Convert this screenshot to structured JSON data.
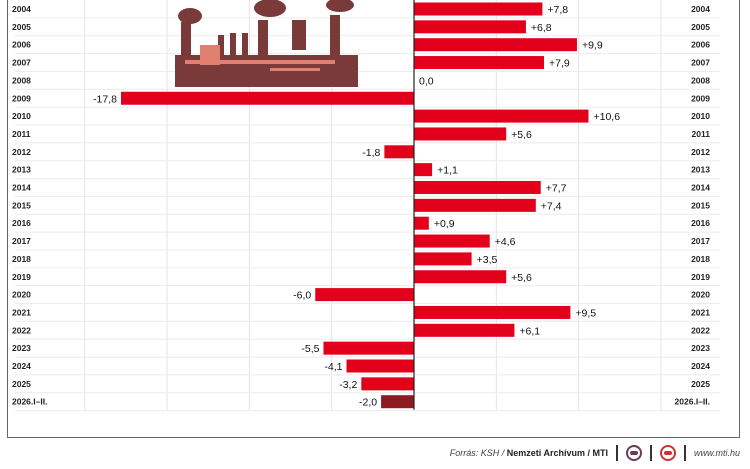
{
  "chart_data": {
    "type": "bar",
    "orientation": "horizontal",
    "categories": [
      "2004",
      "2005",
      "2006",
      "2007",
      "2008",
      "2009",
      "2010",
      "2011",
      "2012",
      "2013",
      "2014",
      "2015",
      "2016",
      "2017",
      "2018",
      "2019",
      "2020",
      "2021",
      "2022",
      "2023",
      "2024",
      "2025",
      "2026.I–II."
    ],
    "values": [
      7.8,
      6.8,
      9.9,
      7.9,
      0.0,
      -17.8,
      10.6,
      5.6,
      -1.8,
      1.1,
      7.7,
      7.4,
      0.9,
      4.6,
      3.5,
      5.6,
      -6.0,
      9.5,
      6.1,
      -5.5,
      -4.1,
      -3.2,
      -2.0
    ],
    "value_labels": [
      "+7,8",
      "+6,8",
      "+9,9",
      "+7,9",
      "0,0",
      "-17,8",
      "+10,6",
      "+5,6",
      "-1,8",
      "+1,1",
      "+7,7",
      "+7,4",
      "+0,9",
      "+4,6",
      "+3,5",
      "+5,6",
      "-6,0",
      "+9,5",
      "+6,1",
      "-5,5",
      "-4,1",
      "-3,2",
      "-2,0"
    ],
    "xlim": [
      -20,
      15
    ],
    "grid": true,
    "colors": {
      "bar": "#e3001b",
      "last_bar": "#8e1a22",
      "illustration": "#7a3a3a",
      "illustration_light": "#e08070"
    }
  },
  "footer": {
    "source_prefix": "Forrás: KSH /",
    "source_bold": "Nemzeti Archívum / MTI",
    "url": "www.mti.hu"
  }
}
